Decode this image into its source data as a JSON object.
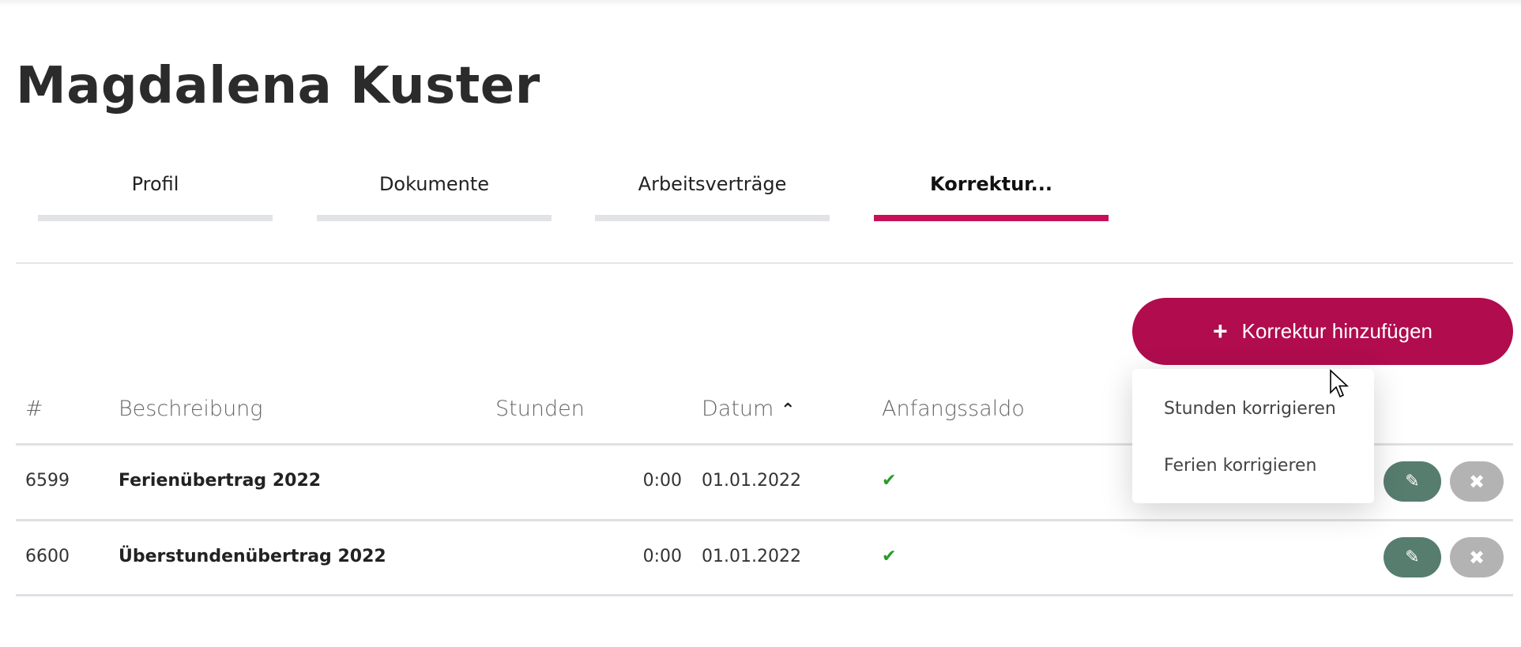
{
  "title": "Magdalena Kuster",
  "tabs": [
    {
      "label": "Profil"
    },
    {
      "label": "Dokumente"
    },
    {
      "label": "Arbeitsverträge"
    },
    {
      "label": "Korrektur..."
    }
  ],
  "active_tab": "Korrektur...",
  "accent_color": "#b00c4e",
  "add_button": {
    "label": "Korrektur hinzufügen",
    "icon": "plus-icon"
  },
  "dropdown": {
    "items": [
      "Stunden korrigieren",
      "Ferien korrigieren"
    ]
  },
  "table": {
    "headers": [
      "#",
      "Beschreibung",
      "Stunden",
      "Datum",
      "Anfangssaldo"
    ],
    "sort": {
      "column": "Datum",
      "direction": "ascending"
    },
    "rows": [
      {
        "id": "6599",
        "description": "Ferienübertrag 2022",
        "hours": "0:00",
        "date": "01.01.2022",
        "initial_balance": true
      },
      {
        "id": "6600",
        "description": "Überstundenübertrag 2022",
        "hours": "0:00",
        "date": "01.01.2022",
        "initial_balance": true
      }
    ]
  }
}
